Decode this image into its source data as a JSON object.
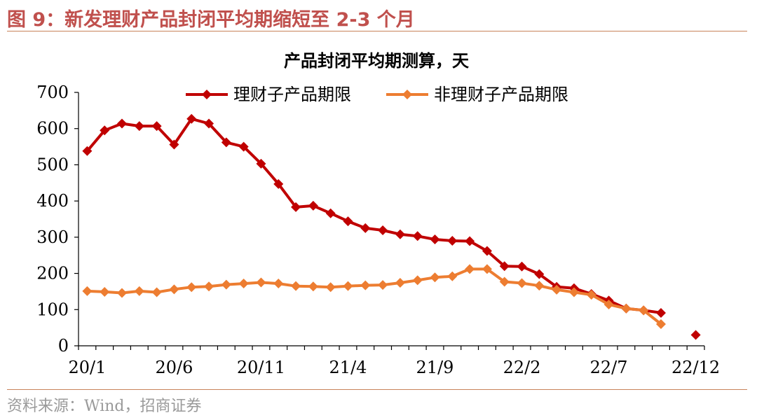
{
  "figure_title": "图 9：新发理财产品封闭平均期缩短至 2-3 个月",
  "source": "资料来源：Wind，招商证券",
  "chart_data": {
    "type": "line",
    "title": "产品封闭平均期测算，天",
    "xlabel": "",
    "ylabel": "",
    "ylim": [
      0,
      700
    ],
    "yticks": [
      0,
      100,
      200,
      300,
      400,
      500,
      600,
      700
    ],
    "x_tick_labels": [
      "20/1",
      "20/6",
      "20/11",
      "21/4",
      "21/9",
      "22/2",
      "22/7",
      "22/12"
    ],
    "x": [
      "20/1",
      "20/2",
      "20/3",
      "20/4",
      "20/5",
      "20/6",
      "20/7",
      "20/8",
      "20/9",
      "20/10",
      "20/11",
      "20/12",
      "21/1",
      "21/2",
      "21/3",
      "21/4",
      "21/5",
      "21/6",
      "21/7",
      "21/8",
      "21/9",
      "21/10",
      "21/11",
      "21/12",
      "22/1",
      "22/2",
      "22/3",
      "22/4",
      "22/5",
      "22/6",
      "22/7",
      "22/8",
      "22/9",
      "22/10",
      "22/11",
      "22/12"
    ],
    "legend_position": "top-center",
    "grid": false,
    "series": [
      {
        "name": "理财子产品期限",
        "color": "#c00000",
        "values": [
          538,
          595,
          614,
          607,
          607,
          556,
          627,
          614,
          562,
          550,
          503,
          447,
          383,
          387,
          366,
          344,
          325,
          319,
          308,
          303,
          294,
          290,
          289,
          262,
          220,
          219,
          198,
          163,
          159,
          143,
          125,
          103,
          98,
          91,
          null,
          30
        ]
      },
      {
        "name": "非理财子产品期限",
        "color": "#ed7d31",
        "values": [
          151,
          149,
          146,
          151,
          148,
          156,
          162,
          164,
          169,
          172,
          175,
          172,
          165,
          164,
          162,
          165,
          167,
          168,
          174,
          181,
          189,
          192,
          212,
          212,
          177,
          173,
          166,
          155,
          148,
          141,
          114,
          103,
          98,
          60,
          null,
          null
        ]
      }
    ]
  }
}
